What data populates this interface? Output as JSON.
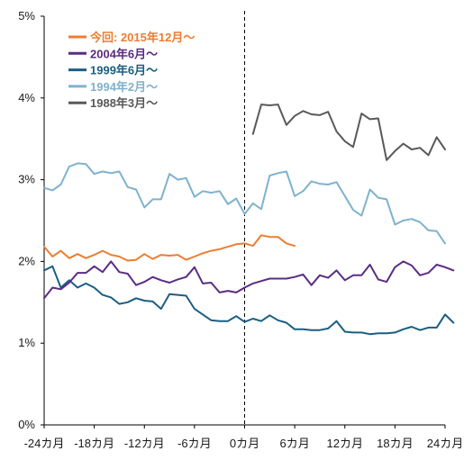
{
  "chart_data": {
    "type": "line",
    "title": "",
    "xlabel": "",
    "ylabel": "",
    "x_ticks": [
      {
        "value": -24,
        "label": "-24カ月"
      },
      {
        "value": -18,
        "label": "-18カ月"
      },
      {
        "value": -12,
        "label": "-12カ月"
      },
      {
        "value": -6,
        "label": "-6カ月"
      },
      {
        "value": 0,
        "label": "0カ月"
      },
      {
        "value": 6,
        "label": "6カ月"
      },
      {
        "value": 12,
        "label": "12カ月"
      },
      {
        "value": 18,
        "label": "18カ月"
      },
      {
        "value": 24,
        "label": "24カ月"
      }
    ],
    "y_ticks": [
      {
        "value": 0,
        "label": "0%"
      },
      {
        "value": 1,
        "label": "1%"
      },
      {
        "value": 2,
        "label": "2%"
      },
      {
        "value": 3,
        "label": "3%"
      },
      {
        "value": 4,
        "label": "4%"
      },
      {
        "value": 5,
        "label": "5%"
      }
    ],
    "xlim": [
      -24,
      24
    ],
    "ylim": [
      0,
      5
    ],
    "grid": false,
    "reference_line": {
      "x": 0,
      "style": "dashed"
    },
    "legend_position": "top-left",
    "series": [
      {
        "name": "今回: 2015年12月〜",
        "color": "#ED7D31",
        "x_start": -24,
        "values": [
          2.18,
          2.06,
          2.13,
          2.04,
          2.09,
          2.04,
          2.08,
          2.13,
          2.08,
          2.06,
          2.01,
          2.02,
          2.09,
          2.03,
          2.08,
          2.07,
          2.08,
          2.02,
          2.06,
          2.1,
          2.13,
          2.15,
          2.18,
          2.21,
          2.22,
          2.19,
          2.32,
          2.3,
          2.3,
          2.22,
          2.19
        ]
      },
      {
        "name": "2004年6月〜",
        "color": "#5B2C84",
        "x_start": -24,
        "values": [
          1.55,
          1.68,
          1.66,
          1.74,
          1.86,
          1.86,
          1.94,
          1.87,
          2.0,
          1.87,
          1.85,
          1.71,
          1.75,
          1.81,
          1.77,
          1.74,
          1.78,
          1.81,
          1.93,
          1.73,
          1.74,
          1.62,
          1.64,
          1.62,
          1.68,
          1.73,
          1.76,
          1.79,
          1.79,
          1.79,
          1.81,
          1.84,
          1.71,
          1.83,
          1.8,
          1.89,
          1.77,
          1.83,
          1.83,
          1.96,
          1.78,
          1.75,
          1.93,
          2.0,
          1.95,
          1.83,
          1.86,
          1.96,
          1.93,
          1.89
        ]
      },
      {
        "name": "1999年6月〜",
        "color": "#1B5E82",
        "x_start": -24,
        "values": [
          1.89,
          1.94,
          1.68,
          1.77,
          1.68,
          1.73,
          1.68,
          1.59,
          1.56,
          1.48,
          1.5,
          1.55,
          1.52,
          1.51,
          1.42,
          1.6,
          1.59,
          1.58,
          1.42,
          1.35,
          1.28,
          1.27,
          1.27,
          1.33,
          1.26,
          1.3,
          1.27,
          1.34,
          1.28,
          1.25,
          1.17,
          1.17,
          1.16,
          1.16,
          1.18,
          1.27,
          1.14,
          1.13,
          1.13,
          1.11,
          1.12,
          1.12,
          1.13,
          1.17,
          1.2,
          1.16,
          1.19,
          1.19,
          1.35,
          1.25
        ]
      },
      {
        "name": "1994年2月〜",
        "color": "#7FB2CD",
        "x_start": -24,
        "values": [
          2.9,
          2.87,
          2.94,
          3.16,
          3.2,
          3.19,
          3.07,
          3.1,
          3.08,
          3.1,
          2.91,
          2.88,
          2.66,
          2.76,
          2.76,
          3.07,
          3.0,
          3.02,
          2.79,
          2.86,
          2.84,
          2.86,
          2.7,
          2.77,
          2.58,
          2.71,
          2.64,
          3.05,
          3.08,
          3.1,
          2.8,
          2.86,
          2.98,
          2.95,
          2.94,
          2.97,
          2.8,
          2.63,
          2.56,
          2.88,
          2.78,
          2.76,
          2.45,
          2.5,
          2.52,
          2.48,
          2.38,
          2.37,
          2.22
        ]
      },
      {
        "name": "1988年3月〜",
        "color": "#595959",
        "x_start": 1,
        "values": [
          3.56,
          3.92,
          3.91,
          3.92,
          3.67,
          3.78,
          3.84,
          3.8,
          3.79,
          3.83,
          3.59,
          3.47,
          3.4,
          3.81,
          3.74,
          3.75,
          3.24,
          3.35,
          3.44,
          3.37,
          3.39,
          3.3,
          3.52,
          3.37
        ]
      }
    ]
  }
}
